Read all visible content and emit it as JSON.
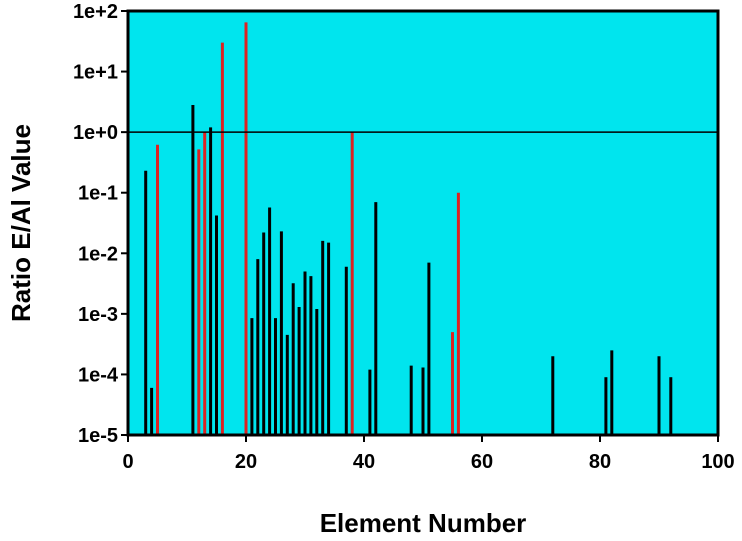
{
  "chart_data": {
    "type": "bar",
    "title": "",
    "xlabel": "Element Number",
    "ylabel": "Ratio E/Al Value",
    "xlim": [
      0,
      100
    ],
    "ylim": [
      1e-05,
      100
    ],
    "y_scale": "log",
    "x_ticks": [
      "0",
      "20",
      "40",
      "60",
      "80",
      "100"
    ],
    "y_ticks": [
      "1e-5",
      "1e-4",
      "1e-3",
      "1e-2",
      "1e-1",
      "1e+0",
      "1e+1",
      "1e+2"
    ],
    "reference_line": {
      "y": 1
    },
    "grid": false,
    "legend": "none",
    "colors": {
      "plot_background": "#00e5ee",
      "black_bars": "#000000",
      "red_bars": "#dd2222",
      "reference_line": "#000000"
    },
    "series": [
      {
        "color": "black",
        "x": [
          3,
          4,
          11,
          14,
          15,
          21,
          22,
          23,
          24,
          25,
          26,
          27,
          28,
          29,
          30,
          31,
          32,
          33,
          34,
          37,
          41,
          42,
          48,
          50,
          51,
          72,
          81,
          82,
          90,
          92
        ],
        "values": [
          0.23,
          6e-05,
          2.8,
          1.2,
          0.042,
          0.00085,
          0.008,
          0.022,
          0.057,
          0.00085,
          0.023,
          0.00045,
          0.0032,
          0.0013,
          0.005,
          0.0042,
          0.0012,
          0.016,
          0.015,
          0.006,
          0.00012,
          0.07,
          0.00014,
          0.00013,
          0.007,
          0.0002,
          9e-05,
          0.00025,
          0.0002,
          9e-05
        ]
      },
      {
        "color": "red",
        "x": [
          5,
          12,
          13,
          16,
          20,
          38,
          55,
          56
        ],
        "values": [
          0.62,
          0.52,
          1.0,
          30,
          65,
          1.0,
          0.0005,
          0.1
        ]
      }
    ]
  }
}
